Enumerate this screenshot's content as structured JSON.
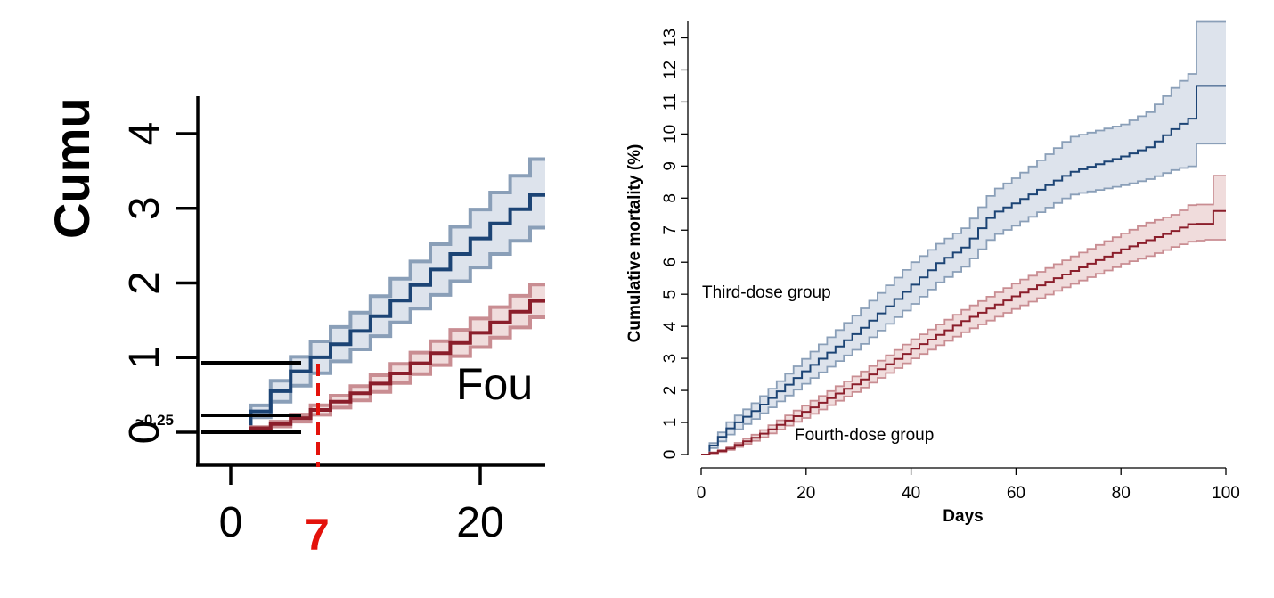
{
  "colors": {
    "third": "#1c4475",
    "third_band": "#dde3ec",
    "third_band_edge": "#8a9fb8",
    "fourth": "#8b1e2b",
    "fourth_band": "#f0dcdc",
    "fourth_band_edge": "#c98d92",
    "annotation_red": "#e3120b",
    "annotation_black": "#000000"
  },
  "zoom_panel": {
    "ylabel_fragment": "Cumu",
    "y_ticks": [
      "0",
      "1",
      "2",
      "3",
      "4"
    ],
    "x_ticks": [
      "0",
      "20"
    ],
    "inset_label": "Fou",
    "annotation_day": "7",
    "annotation_value": "~0.25",
    "xlim": [
      -3,
      25
    ],
    "ylim": [
      -0.45,
      4.5
    ]
  },
  "chart_data": {
    "type": "line",
    "xlabel": "Days",
    "ylabel": "Cumulative mortality (%)",
    "xlim": [
      0,
      100
    ],
    "ylim": [
      0,
      13.5
    ],
    "x_ticks": [
      "0",
      "20",
      "40",
      "60",
      "80",
      "100"
    ],
    "y_ticks": [
      "0",
      "1",
      "2",
      "3",
      "4",
      "5",
      "6",
      "7",
      "8",
      "9",
      "10",
      "11",
      "12",
      "13"
    ],
    "grid": false,
    "series": [
      {
        "name": "Third-dose group",
        "points": [
          [
            0,
            0
          ],
          [
            2,
            0.35
          ],
          [
            5,
            0.85
          ],
          [
            10,
            1.4
          ],
          [
            20,
            2.7
          ],
          [
            30,
            3.9
          ],
          [
            40,
            5.3
          ],
          [
            45,
            6.0
          ],
          [
            50,
            6.5
          ],
          [
            55,
            7.5
          ],
          [
            60,
            7.9
          ],
          [
            70,
            8.8
          ],
          [
            80,
            9.3
          ],
          [
            85,
            9.6
          ],
          [
            90,
            10.2
          ],
          [
            93,
            10.5
          ],
          [
            94,
            11.5
          ],
          [
            100,
            11.5
          ]
        ],
        "lower": [
          [
            0,
            0
          ],
          [
            2,
            0.25
          ],
          [
            5,
            0.65
          ],
          [
            10,
            1.15
          ],
          [
            20,
            2.3
          ],
          [
            30,
            3.4
          ],
          [
            40,
            4.7
          ],
          [
            45,
            5.4
          ],
          [
            50,
            5.9
          ],
          [
            55,
            6.8
          ],
          [
            60,
            7.2
          ],
          [
            70,
            8.1
          ],
          [
            80,
            8.4
          ],
          [
            85,
            8.6
          ],
          [
            90,
            8.9
          ],
          [
            93,
            9.0
          ],
          [
            94,
            9.7
          ],
          [
            100,
            9.7
          ]
        ],
        "upper": [
          [
            0,
            0
          ],
          [
            2,
            0.45
          ],
          [
            5,
            1.05
          ],
          [
            10,
            1.65
          ],
          [
            20,
            3.1
          ],
          [
            30,
            4.5
          ],
          [
            40,
            6.0
          ],
          [
            45,
            6.6
          ],
          [
            50,
            7.1
          ],
          [
            55,
            8.2
          ],
          [
            60,
            8.7
          ],
          [
            70,
            9.9
          ],
          [
            80,
            10.3
          ],
          [
            85,
            10.7
          ],
          [
            90,
            11.5
          ],
          [
            93,
            11.9
          ],
          [
            94,
            13.5
          ],
          [
            100,
            13.5
          ]
        ]
      },
      {
        "name": "Fourth-dose group",
        "points": [
          [
            0,
            0
          ],
          [
            3,
            0.1
          ],
          [
            5,
            0.2
          ],
          [
            10,
            0.55
          ],
          [
            20,
            1.4
          ],
          [
            30,
            2.3
          ],
          [
            40,
            3.3
          ],
          [
            50,
            4.2
          ],
          [
            60,
            5.0
          ],
          [
            70,
            5.7
          ],
          [
            80,
            6.4
          ],
          [
            85,
            6.7
          ],
          [
            90,
            7.0
          ],
          [
            93,
            7.2
          ],
          [
            96,
            7.2
          ],
          [
            97,
            7.6
          ],
          [
            100,
            7.6
          ]
        ],
        "lower": [
          [
            0,
            0
          ],
          [
            3,
            0.07
          ],
          [
            5,
            0.15
          ],
          [
            10,
            0.45
          ],
          [
            20,
            1.2
          ],
          [
            30,
            2.05
          ],
          [
            40,
            3.0
          ],
          [
            50,
            3.85
          ],
          [
            60,
            4.6
          ],
          [
            70,
            5.3
          ],
          [
            80,
            5.95
          ],
          [
            85,
            6.2
          ],
          [
            90,
            6.5
          ],
          [
            93,
            6.65
          ],
          [
            96,
            6.7
          ],
          [
            97,
            6.7
          ],
          [
            100,
            6.7
          ]
        ],
        "upper": [
          [
            0,
            0
          ],
          [
            3,
            0.13
          ],
          [
            5,
            0.25
          ],
          [
            10,
            0.65
          ],
          [
            20,
            1.6
          ],
          [
            30,
            2.55
          ],
          [
            40,
            3.6
          ],
          [
            50,
            4.55
          ],
          [
            60,
            5.4
          ],
          [
            70,
            6.15
          ],
          [
            80,
            6.9
          ],
          [
            85,
            7.25
          ],
          [
            90,
            7.5
          ],
          [
            93,
            7.8
          ],
          [
            96,
            7.8
          ],
          [
            97,
            8.7
          ],
          [
            100,
            8.7
          ]
        ]
      }
    ]
  }
}
